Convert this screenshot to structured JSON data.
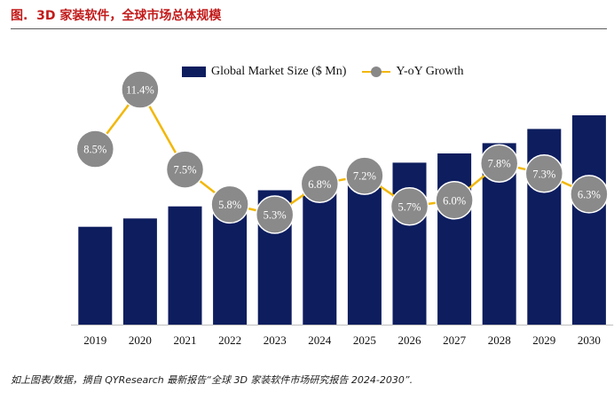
{
  "header": {
    "figure_label": "图.",
    "title": "3D 家装软件，全球市场总体规模"
  },
  "source_note": "如上图表/数据，摘自 QYResearch 最新报告“全球 3D 家装软件市场研究报告 2024-2030”.",
  "colors": {
    "bar": "#0d1d5e",
    "line": "#f2b706",
    "marker": "#8a8a8a",
    "marker_stroke": "#ffffff",
    "title": "#c21a1a"
  },
  "chart_data": {
    "type": "bar",
    "title": "3D 家装软件，全球市场总体规模",
    "categories": [
      "2019",
      "2020",
      "2021",
      "2022",
      "2023",
      "2024",
      "2025",
      "2026",
      "2027",
      "2028",
      "2029",
      "2030"
    ],
    "series": [
      {
        "name": "Global Market Size ($ Mn)",
        "type": "bar",
        "values": [
          100,
          108.5,
          120.9,
          129.9,
          137.4,
          144.7,
          154.5,
          165.6,
          175.0,
          185.5,
          200.0,
          214.0
        ]
      },
      {
        "name": "Y-oY Growth",
        "type": "line",
        "values": [
          8.5,
          11.4,
          7.5,
          5.8,
          5.3,
          6.8,
          7.2,
          5.7,
          6.0,
          7.8,
          7.3,
          6.3
        ],
        "labels": [
          "8.5%",
          "11.4%",
          "7.5%",
          "5.8%",
          "5.3%",
          "6.8%",
          "7.2%",
          "5.7%",
          "6.0%",
          "7.8%",
          "7.3%",
          "6.3%"
        ]
      }
    ],
    "legend": [
      "Global Market Size ($ Mn)",
      "Y-oY Growth"
    ],
    "legend_position": "top",
    "y_axis_visible": false,
    "grid": false
  }
}
